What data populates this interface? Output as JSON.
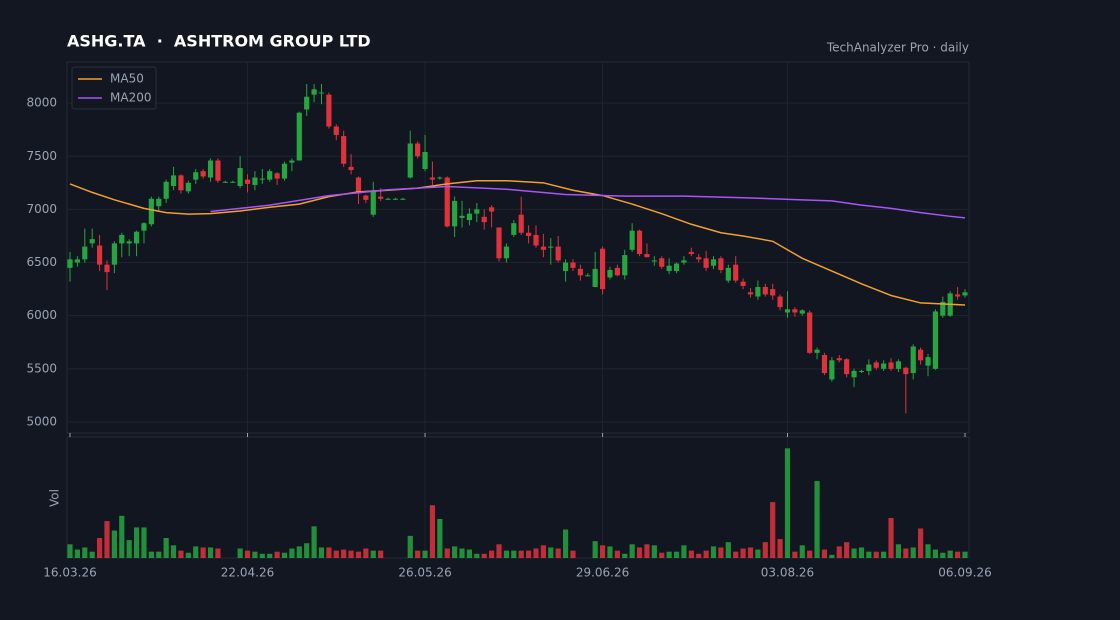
{
  "chart_data": [
    {
      "type": "candlestick",
      "title": "ASHG.TA  ·  ASHTROM GROUP LTD",
      "subtitle": "TechAnalyzer Pro · daily",
      "categories": [
        "16.03.26",
        null,
        null,
        null,
        null,
        null,
        null,
        null,
        null,
        null,
        null,
        null,
        null,
        null,
        null,
        null,
        null,
        null,
        null,
        null,
        null,
        null,
        null,
        null,
        "22.04.26",
        null,
        null,
        null,
        null,
        null,
        null,
        null,
        null,
        null,
        null,
        null,
        null,
        null,
        null,
        null,
        null,
        null,
        null,
        null,
        null,
        null,
        null,
        null,
        "26.05.26",
        null,
        null,
        null,
        null,
        null,
        null,
        null,
        null,
        null,
        null,
        null,
        null,
        null,
        null,
        null,
        null,
        null,
        null,
        null,
        null,
        null,
        null,
        null,
        "29.06.26",
        null,
        null,
        null,
        null,
        null,
        null,
        null,
        null,
        null,
        null,
        null,
        null,
        null,
        null,
        null,
        null,
        null,
        null,
        null,
        null,
        null,
        null,
        null,
        null,
        "03.08.26",
        null,
        null,
        null,
        null,
        null,
        null,
        null,
        null,
        null,
        null,
        null,
        null,
        null,
        null,
        null,
        null,
        null,
        null,
        null,
        null,
        null,
        null,
        null,
        "06.09.26"
      ],
      "ohlc": [
        [
          6450,
          6600,
          6320,
          6530
        ],
        [
          6500,
          6560,
          6460,
          6530
        ],
        [
          6530,
          6820,
          6500,
          6650
        ],
        [
          6680,
          6820,
          6640,
          6720
        ],
        [
          6660,
          6760,
          6420,
          6480
        ],
        [
          6480,
          6520,
          6240,
          6410
        ],
        [
          6480,
          6700,
          6400,
          6680
        ],
        [
          6680,
          6780,
          6550,
          6760
        ],
        [
          6680,
          6720,
          6560,
          6700
        ],
        [
          6680,
          6800,
          6560,
          6790
        ],
        [
          6800,
          6880,
          6680,
          6870
        ],
        [
          6860,
          7120,
          6840,
          7100
        ],
        [
          7030,
          7120,
          6990,
          7100
        ],
        [
          7100,
          7280,
          7060,
          7260
        ],
        [
          7220,
          7400,
          7180,
          7320
        ],
        [
          7320,
          7330,
          7150,
          7180
        ],
        [
          7170,
          7270,
          7150,
          7250
        ],
        [
          7280,
          7380,
          7240,
          7350
        ],
        [
          7360,
          7380,
          7290,
          7310
        ],
        [
          7300,
          7480,
          7260,
          7460
        ],
        [
          7460,
          7480,
          7250,
          7270
        ],
        [
          7260,
          7270,
          7250,
          7260
        ],
        [
          7260,
          7270,
          7250,
          7260
        ],
        [
          7220,
          7500,
          7200,
          7390
        ],
        [
          7280,
          7330,
          7160,
          7240
        ],
        [
          7230,
          7360,
          7180,
          7300
        ],
        [
          7280,
          7380,
          7240,
          7290
        ],
        [
          7280,
          7380,
          7260,
          7360
        ],
        [
          7340,
          7350,
          7230,
          7290
        ],
        [
          7290,
          7450,
          7270,
          7430
        ],
        [
          7440,
          7480,
          7360,
          7460
        ],
        [
          7460,
          7920,
          7460,
          7910
        ],
        [
          7940,
          8180,
          7880,
          8060
        ],
        [
          8080,
          8180,
          8010,
          8130
        ],
        [
          8100,
          8180,
          7990,
          8100
        ],
        [
          8080,
          8100,
          7760,
          7780
        ],
        [
          7780,
          7800,
          7650,
          7700
        ],
        [
          7690,
          7740,
          7400,
          7430
        ],
        [
          7400,
          7520,
          7330,
          7370
        ],
        [
          7300,
          7310,
          7050,
          7150
        ],
        [
          7130,
          7140,
          7060,
          7090
        ],
        [
          6950,
          7260,
          6930,
          7180
        ],
        [
          7120,
          7200,
          7080,
          7100
        ],
        [
          7100,
          7110,
          7090,
          7100
        ],
        [
          7100,
          7110,
          7090,
          7100
        ],
        [
          7100,
          7110,
          7090,
          7100
        ],
        [
          7300,
          7740,
          7290,
          7620
        ],
        [
          7620,
          7640,
          7480,
          7500
        ],
        [
          7380,
          7700,
          7360,
          7540
        ],
        [
          7300,
          7450,
          7230,
          7280
        ],
        [
          7300,
          7310,
          7280,
          7300
        ],
        [
          7300,
          7310,
          6830,
          6840
        ],
        [
          6840,
          7120,
          6740,
          7080
        ],
        [
          6920,
          7080,
          6830,
          6940
        ],
        [
          6900,
          7010,
          6850,
          6960
        ],
        [
          6960,
          7060,
          6880,
          7000
        ],
        [
          6930,
          7000,
          6810,
          6880
        ],
        [
          7020,
          7040,
          6830,
          6980
        ],
        [
          6830,
          6830,
          6510,
          6540
        ],
        [
          6540,
          6680,
          6500,
          6650
        ],
        [
          6760,
          6900,
          6740,
          6870
        ],
        [
          6950,
          7120,
          6760,
          6780
        ],
        [
          6780,
          6850,
          6680,
          6750
        ],
        [
          6760,
          6850,
          6640,
          6660
        ],
        [
          6650,
          6770,
          6550,
          6620
        ],
        [
          6640,
          6730,
          6480,
          6650
        ],
        [
          6650,
          6750,
          6500,
          6520
        ],
        [
          6420,
          6530,
          6320,
          6500
        ],
        [
          6500,
          6530,
          6420,
          6450
        ],
        [
          6440,
          6480,
          6330,
          6380
        ],
        [
          6380,
          6400,
          6370,
          6380
        ],
        [
          6270,
          6600,
          6270,
          6440
        ],
        [
          6630,
          6650,
          6200,
          6250
        ],
        [
          6360,
          6460,
          6340,
          6430
        ],
        [
          6450,
          6480,
          6370,
          6380
        ],
        [
          6380,
          6620,
          6340,
          6570
        ],
        [
          6620,
          6870,
          6600,
          6800
        ],
        [
          6800,
          6810,
          6560,
          6580
        ],
        [
          6580,
          6680,
          6550,
          6550
        ],
        [
          6510,
          6560,
          6470,
          6520
        ],
        [
          6540,
          6560,
          6440,
          6460
        ],
        [
          6420,
          6540,
          6390,
          6470
        ],
        [
          6420,
          6500,
          6400,
          6490
        ],
        [
          6500,
          6560,
          6480,
          6520
        ],
        [
          6600,
          6640,
          6560,
          6580
        ],
        [
          6550,
          6580,
          6500,
          6530
        ],
        [
          6540,
          6610,
          6420,
          6450
        ],
        [
          6470,
          6560,
          6440,
          6530
        ],
        [
          6540,
          6560,
          6400,
          6430
        ],
        [
          6330,
          6480,
          6310,
          6450
        ],
        [
          6480,
          6560,
          6310,
          6330
        ],
        [
          6320,
          6350,
          6250,
          6280
        ],
        [
          6220,
          6260,
          6170,
          6200
        ],
        [
          6180,
          6330,
          6150,
          6270
        ],
        [
          6270,
          6300,
          6180,
          6200
        ],
        [
          6250,
          6300,
          6150,
          6190
        ],
        [
          6180,
          6200,
          6050,
          6080
        ],
        [
          6030,
          6230,
          5980,
          6060
        ],
        [
          6060,
          6080,
          5990,
          6030
        ],
        [
          6020,
          6060,
          6000,
          6050
        ],
        [
          6030,
          6050,
          5640,
          5650
        ],
        [
          5650,
          5700,
          5590,
          5680
        ],
        [
          5630,
          5650,
          5440,
          5460
        ],
        [
          5400,
          5610,
          5380,
          5580
        ],
        [
          5600,
          5630,
          5560,
          5580
        ],
        [
          5590,
          5600,
          5420,
          5450
        ],
        [
          5420,
          5500,
          5330,
          5480
        ],
        [
          5470,
          5490,
          5460,
          5480
        ],
        [
          5480,
          5590,
          5440,
          5540
        ],
        [
          5560,
          5580,
          5490,
          5510
        ],
        [
          5500,
          5580,
          5480,
          5550
        ],
        [
          5560,
          5600,
          5480,
          5500
        ],
        [
          5500,
          5590,
          5470,
          5570
        ],
        [
          5510,
          5520,
          5080,
          5450
        ],
        [
          5460,
          5730,
          5400,
          5710
        ],
        [
          5680,
          5700,
          5540,
          5580
        ],
        [
          5530,
          5640,
          5430,
          5610
        ],
        [
          5500,
          6060,
          5490,
          6040
        ],
        [
          6000,
          6180,
          5980,
          6130
        ],
        [
          6000,
          6230,
          5990,
          6210
        ],
        [
          6200,
          6270,
          6150,
          6180
        ],
        [
          6190,
          6250,
          6170,
          6220
        ]
      ],
      "up_color": "#26a641",
      "down_color": "#e0323c",
      "ylim": [
        4896,
        8387
      ],
      "yticks": [
        5000,
        5500,
        6000,
        6500,
        7000,
        7500,
        8000
      ],
      "grid": true,
      "legend": "upper left",
      "series": [
        {
          "name": "MA50",
          "color": "#f0a030",
          "x": [
            0,
            3,
            6,
            10,
            13,
            16,
            19,
            23,
            27,
            31,
            35,
            39,
            43,
            47,
            51,
            55,
            59,
            64,
            68,
            72,
            76,
            80,
            84,
            88,
            91,
            95,
            99,
            103,
            107,
            111,
            115,
            121
          ],
          "values": [
            7240,
            7160,
            7090,
            7010,
            6970,
            6955,
            6960,
            6985,
            7020,
            7050,
            7120,
            7165,
            7180,
            7200,
            7240,
            7270,
            7270,
            7250,
            7180,
            7130,
            7050,
            6960,
            6860,
            6780,
            6750,
            6700,
            6540,
            6420,
            6300,
            6190,
            6120,
            6100
          ]
        },
        {
          "name": "MA200",
          "color": "#a855f7",
          "x": [
            19,
            27,
            35,
            43,
            51,
            59,
            67,
            75,
            83,
            91,
            99,
            103,
            107,
            111,
            115,
            119,
            121
          ],
          "values": [
            6980,
            7040,
            7130,
            7185,
            7215,
            7190,
            7140,
            7125,
            7125,
            7110,
            7090,
            7080,
            7040,
            7010,
            6970,
            6935,
            6920
          ]
        }
      ]
    },
    {
      "type": "bar",
      "y_label": "Vol",
      "ylim": [
        0,
        110
      ],
      "values": [
        13,
        8,
        10,
        6,
        19,
        35,
        26,
        40,
        17,
        29,
        29,
        6,
        6,
        19,
        12,
        7,
        5,
        11,
        10,
        10,
        9,
        0,
        0,
        9,
        7,
        6,
        4,
        4,
        6,
        5,
        9,
        11,
        14,
        30,
        10,
        10,
        7,
        8,
        7,
        6,
        9,
        7,
        7,
        0,
        0,
        0,
        21,
        7,
        7,
        50,
        37,
        9,
        11,
        9,
        8,
        4,
        4,
        7,
        13,
        7,
        7,
        7,
        7,
        9,
        12,
        10,
        9,
        27,
        7,
        0,
        0,
        16,
        12,
        11,
        7,
        4,
        13,
        10,
        13,
        12,
        5,
        6,
        6,
        12,
        7,
        4,
        7,
        11,
        10,
        15,
        6,
        9,
        10,
        8,
        15,
        53,
        18,
        104,
        6,
        12,
        7,
        73,
        8,
        3,
        11,
        15,
        9,
        10,
        6,
        6,
        6,
        38,
        13,
        9,
        10,
        28,
        13,
        8,
        5,
        7,
        6,
        6
      ]
    }
  ]
}
